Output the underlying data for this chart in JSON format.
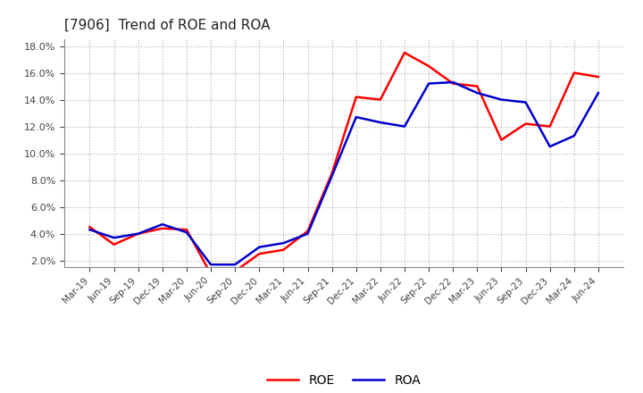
{
  "title": "[7906]  Trend of ROE and ROA",
  "labels": [
    "Mar-19",
    "Jun-19",
    "Sep-19",
    "Dec-19",
    "Mar-20",
    "Jun-20",
    "Sep-20",
    "Dec-20",
    "Mar-21",
    "Jun-21",
    "Sep-21",
    "Dec-21",
    "Mar-22",
    "Jun-22",
    "Sep-22",
    "Dec-22",
    "Mar-23",
    "Jun-23",
    "Sep-23",
    "Dec-23",
    "Mar-24",
    "Jun-24"
  ],
  "ROE": [
    4.5,
    3.2,
    4.0,
    4.4,
    4.3,
    1.0,
    1.2,
    2.5,
    2.8,
    4.2,
    8.5,
    14.2,
    14.0,
    17.5,
    16.5,
    15.2,
    15.0,
    11.0,
    12.2,
    12.0,
    16.0,
    15.7
  ],
  "ROA": [
    4.3,
    3.7,
    4.0,
    4.7,
    4.1,
    1.7,
    1.7,
    3.0,
    3.3,
    4.0,
    8.3,
    12.7,
    12.3,
    12.0,
    15.2,
    15.3,
    14.5,
    14.0,
    13.8,
    10.5,
    11.3,
    14.5
  ],
  "roe_color": "#ff0000",
  "roa_color": "#0000cc",
  "ylim": [
    1.5,
    18.5
  ],
  "yticks": [
    2.0,
    4.0,
    6.0,
    8.0,
    10.0,
    12.0,
    14.0,
    16.0,
    18.0
  ],
  "grid_color": "#b0b0b0",
  "background_color": "#ffffff",
  "legend_roe": "ROE",
  "legend_roa": "ROA",
  "linewidth": 1.8
}
